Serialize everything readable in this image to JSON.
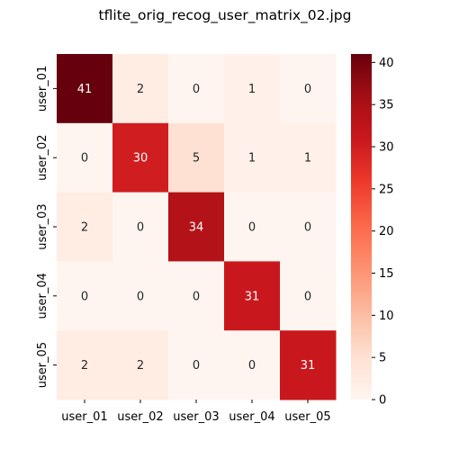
{
  "title": "tflite_orig_recog_user_matrix_02.jpg",
  "chart_data": {
    "type": "heatmap",
    "title": "tflite_orig_recog_user_matrix_02.jpg",
    "rows": [
      "user_01",
      "user_02",
      "user_03",
      "user_04",
      "user_05"
    ],
    "columns": [
      "user_01",
      "user_02",
      "user_03",
      "user_04",
      "user_05"
    ],
    "values": [
      [
        41,
        2,
        0,
        1,
        0
      ],
      [
        0,
        30,
        5,
        1,
        1
      ],
      [
        2,
        0,
        34,
        0,
        0
      ],
      [
        0,
        0,
        0,
        31,
        0
      ],
      [
        2,
        2,
        0,
        0,
        31
      ]
    ],
    "colormap": "Reds",
    "vmin": 0,
    "vmax": 41,
    "colorbar_ticks": [
      0,
      5,
      10,
      15,
      20,
      25,
      30,
      35,
      40
    ]
  }
}
